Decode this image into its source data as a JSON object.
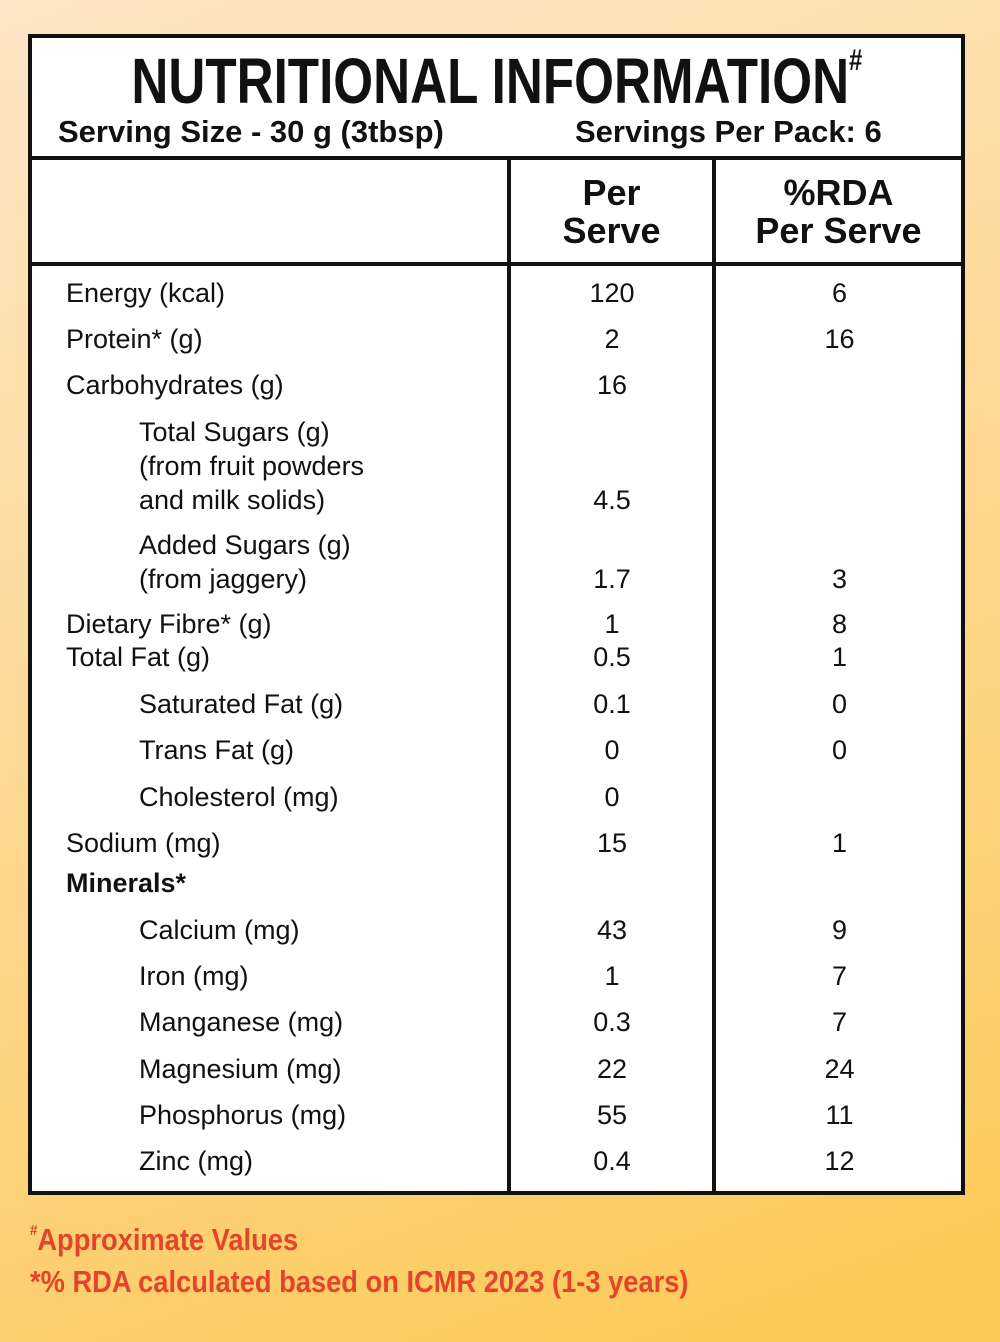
{
  "header": {
    "title": "NUTRITIONAL INFORMATION",
    "title_mark": "#",
    "serving_size": "Serving Size - 30 g (3tbsp)",
    "servings_per_pack": "Servings Per Pack: 6"
  },
  "columns": {
    "per_serve_1": "Per",
    "per_serve_2": "Serve",
    "rda_1": "%RDA",
    "rda_2": "Per Serve"
  },
  "rows": [
    {
      "lines": [
        "Energy (kcal)"
      ],
      "per_serve": "120",
      "rda": "6"
    },
    {
      "lines": [
        "Protein* (g)"
      ],
      "per_serve": "2",
      "rda": "16"
    },
    {
      "lines": [
        "Carbohydrates (g)"
      ],
      "per_serve": "16",
      "rda": ""
    },
    {
      "lines": [
        "Total Sugars (g)",
        "(from fruit powders",
        "and milk solids)"
      ],
      "per_serve": "4.5",
      "rda": ""
    },
    {
      "lines": [
        "Added Sugars (g)",
        "(from jaggery)"
      ],
      "per_serve": "1.7",
      "rda": "3"
    },
    {
      "lines": [
        "Dietary Fibre* (g)"
      ],
      "per_serve": "1",
      "rda": "8"
    },
    {
      "lines": [
        "Total Fat (g)"
      ],
      "per_serve": "0.5",
      "rda": "1"
    },
    {
      "lines": [
        "Saturated Fat (g)"
      ],
      "per_serve": "0.1",
      "rda": "0"
    },
    {
      "lines": [
        "Trans Fat (g)"
      ],
      "per_serve": "0",
      "rda": "0"
    },
    {
      "lines": [
        "Cholesterol (mg)"
      ],
      "per_serve": "0",
      "rda": ""
    },
    {
      "lines": [
        "Sodium (mg)"
      ],
      "per_serve": "15",
      "rda": "1"
    },
    {
      "lines": [
        "Minerals*"
      ],
      "per_serve": "",
      "rda": ""
    },
    {
      "lines": [
        "Calcium (mg)"
      ],
      "per_serve": "43",
      "rda": "9"
    },
    {
      "lines": [
        "Iron (mg)"
      ],
      "per_serve": "1",
      "rda": "7"
    },
    {
      "lines": [
        "Manganese (mg)"
      ],
      "per_serve": "0.3",
      "rda": "7"
    },
    {
      "lines": [
        "Magnesium (mg)"
      ],
      "per_serve": "22",
      "rda": "24"
    },
    {
      "lines": [
        "Phosphorus (mg)"
      ],
      "per_serve": "55",
      "rda": "11"
    },
    {
      "lines": [
        "Zinc (mg)"
      ],
      "per_serve": "0.4",
      "rda": "12"
    }
  ],
  "footer": {
    "note1_mark": "#",
    "note1": "Approximate Values",
    "note2": "*% RDA calculated based on ICMR 2023 (1-3 years)"
  },
  "colors": {
    "footer_text": "#e5432a",
    "border": "#111111",
    "background_top": "#fde6c6",
    "background_bottom": "#fcc954"
  }
}
